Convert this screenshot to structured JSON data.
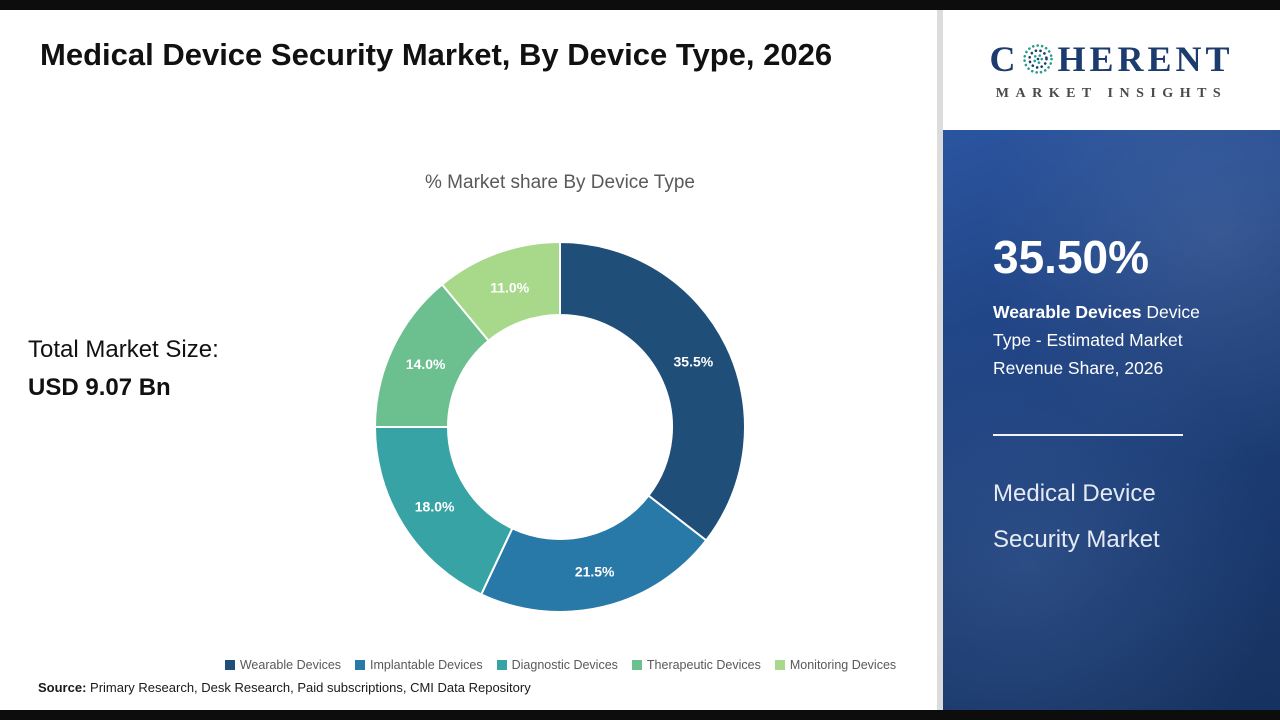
{
  "header": {
    "title": "Medical Device Security Market, By Device Type, 2026"
  },
  "chart_data": {
    "type": "pie",
    "donut": true,
    "title": "% Market share By Device Type",
    "categories": [
      "Wearable Devices",
      "Implantable Devices",
      "Diagnostic Devices",
      "Therapeutic Devices",
      "Monitoring Devices"
    ],
    "values": [
      35.5,
      21.5,
      18.0,
      14.0,
      11.0
    ],
    "labels": [
      "35.5%",
      "21.5%",
      "18.0%",
      "14.0%",
      "11.0%"
    ],
    "colors": [
      "#1f4e79",
      "#2878a8",
      "#38a3a5",
      "#6cbf8f",
      "#a8d88a"
    ],
    "legend_position": "bottom",
    "start_angle_deg": 0,
    "direction": "clockwise"
  },
  "market_size": {
    "label": "Total Market Size:",
    "value": "USD 9.07 Bn"
  },
  "source": {
    "prefix": "Source:",
    "text": " Primary Research, Desk Research, Paid subscriptions, CMI Data Repository"
  },
  "sidebar": {
    "logo": {
      "brand_first": "C",
      "brand_rest": "HERENT",
      "subtitle": "MARKET INSIGHTS"
    },
    "stat_value": "35.50%",
    "stat_bold": "Wearable Devices",
    "stat_rest": " Device Type - Estimated Market Revenue Share, 2026",
    "market_name_line1": "Medical Device",
    "market_name_line2": "Security Market"
  }
}
